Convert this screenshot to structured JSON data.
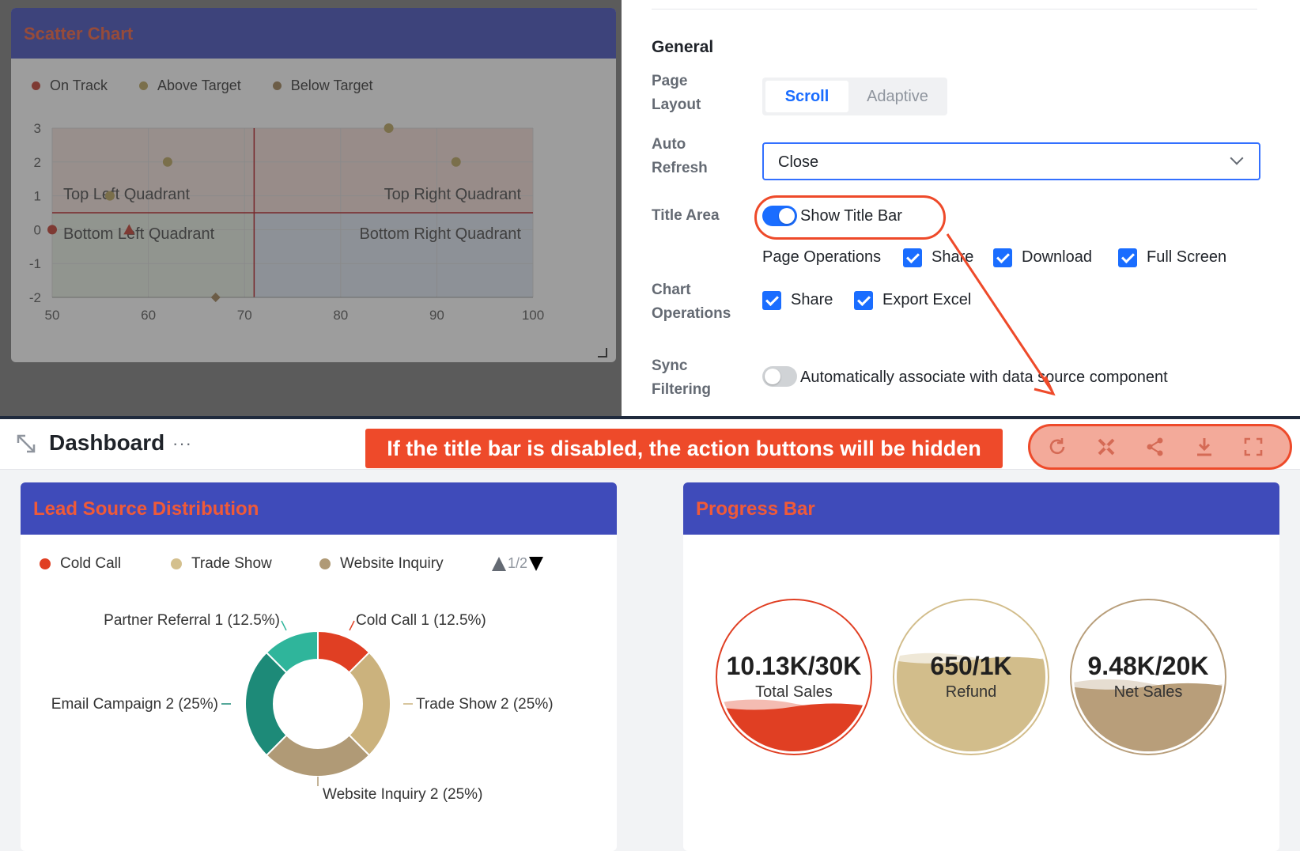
{
  "scatter": {
    "title": "Scatter Chart",
    "legend": [
      {
        "label": "On Track",
        "color": "#c0392b"
      },
      {
        "label": "Above Target",
        "color": "#b8a25a"
      },
      {
        "label": "Below Target",
        "color": "#9c7e52"
      }
    ],
    "quadrants": {
      "top_left": "Top Left Quadrant",
      "top_right": "Top Right Quadrant",
      "bottom_left": "Bottom Left Quadrant",
      "bottom_right": "Bottom Right Quadrant"
    }
  },
  "chart_data": [
    {
      "type": "scatter",
      "title": "Scatter Chart",
      "xlim": [
        50,
        100
      ],
      "ylim": [
        -2,
        3
      ],
      "xticks": [
        50,
        60,
        70,
        80,
        90,
        100
      ],
      "yticks": [
        3,
        2,
        1,
        0,
        -1,
        -2
      ],
      "threshold_x": 71,
      "threshold_y": 0.5,
      "grid": true,
      "legend_position": "top-left",
      "series": [
        {
          "name": "On Track",
          "color": "#c0392b",
          "shape": "circle",
          "points": [
            [
              50,
              0
            ]
          ]
        },
        {
          "name": "Above Target",
          "color": "#b8a25a",
          "shape": "circle",
          "points": [
            [
              62,
              2
            ],
            [
              85,
              3
            ],
            [
              92,
              2
            ],
            [
              56,
              1
            ]
          ]
        },
        {
          "name": "Below Target",
          "color": "#9c7e52",
          "shape": "diamond",
          "points": [
            [
              67,
              -2
            ]
          ]
        },
        {
          "name": "",
          "color": "#c0392b",
          "shape": "triangle",
          "points": [
            [
              58,
              0
            ]
          ]
        }
      ]
    },
    {
      "type": "pie",
      "title": "Lead Source Distribution",
      "donut": true,
      "slices": [
        {
          "label": "Cold Call",
          "value": 1,
          "percent": "12.5%",
          "color": "#e03f23"
        },
        {
          "label": "Trade Show",
          "value": 2,
          "percent": "25%",
          "color": "#cbb27d"
        },
        {
          "label": "Website Inquiry",
          "value": 2,
          "percent": "25%",
          "color": "#b09a76"
        },
        {
          "label": "Email Campaign",
          "value": 2,
          "percent": "25%",
          "color": "#1d8a78"
        },
        {
          "label": "Partner Referral",
          "value": 1,
          "percent": "12.5%",
          "color": "#2fb59b"
        }
      ],
      "legend_position": "top"
    }
  ],
  "settings": {
    "general_heading": "General",
    "page_layout": {
      "label_line1": "Page",
      "label_line2": "Layout",
      "options": [
        "Scroll",
        "Adaptive"
      ],
      "selected": "Scroll"
    },
    "auto_refresh": {
      "label_line1": "Auto",
      "label_line2": "Refresh",
      "value": "Close"
    },
    "title_area": {
      "label": "Title Area",
      "toggle_label": "Show Title Bar",
      "enabled": true
    },
    "page_operations": {
      "label": "Page Operations",
      "options": [
        "Share",
        "Download",
        "Full Screen"
      ]
    },
    "chart_operations": {
      "label_line1": "Chart",
      "label_line2": "Operations",
      "options": [
        "Share",
        "Export Excel"
      ]
    },
    "sync_filtering": {
      "label_line1": "Sync",
      "label_line2": "Filtering",
      "text": "Automatically associate with data source component",
      "enabled": false
    }
  },
  "dashboard": {
    "title": "Dashboard",
    "more": "···",
    "callout": "If the title bar is disabled, the action buttons will be hidden",
    "actions": [
      "refresh-icon",
      "tools-icon",
      "share-icon",
      "download-icon",
      "fullscreen-icon"
    ],
    "lead_panel": {
      "title": "Lead Source Distribution",
      "legend": [
        {
          "label": "Cold Call",
          "color": "#e03f23"
        },
        {
          "label": "Trade Show",
          "color": "#d4c08e"
        },
        {
          "label": "Website Inquiry",
          "color": "#b09a76"
        }
      ],
      "pager": "1/2",
      "slice_labels": {
        "partner": "Partner Referral  1 (12.5%)",
        "cold": "Cold Call  1 (12.5%)",
        "email": "Email Campaign  2 (25%)",
        "trade": "Trade Show  2 (25%)",
        "website": "Website Inquiry  2 (25%)"
      }
    },
    "progress_panel": {
      "title": "Progress Bar",
      "gauges": [
        {
          "value": "10.13K/30K",
          "label": "Total Sales",
          "fraction": 0.338,
          "color": "#e03f23"
        },
        {
          "value": "650/1K",
          "label": "Refund",
          "fraction": 0.65,
          "color": "#d2bd8b"
        },
        {
          "value": "9.48K/20K",
          "label": "Net Sales",
          "fraction": 0.474,
          "color": "#b89e7a"
        }
      ]
    }
  },
  "colors": {
    "accent": "#1a6dff",
    "callout": "#ee4a2a",
    "panel_header": "#3f4bba",
    "panel_title": "#f05a38"
  }
}
